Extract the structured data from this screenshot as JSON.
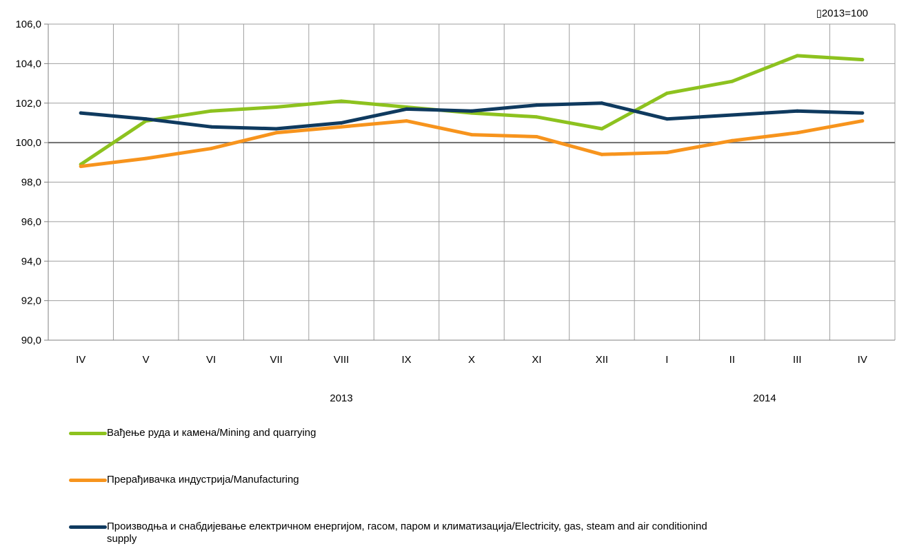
{
  "chart_data": {
    "type": "line",
    "unit_note": "2013=100",
    "categories": [
      "IV",
      "V",
      "VI",
      "VII",
      "VIII",
      "IX",
      "X",
      "XI",
      "XII",
      "I",
      "II",
      "III",
      "IV"
    ],
    "year_labels": [
      {
        "label": "2013",
        "from_index": 0,
        "to_index": 8
      },
      {
        "label": "2014",
        "from_index": 9,
        "to_index": 12
      }
    ],
    "ylim": [
      90,
      106
    ],
    "yticks": [
      "90,0",
      "92,0",
      "94,0",
      "96,0",
      "98,0",
      "100,0",
      "102,0",
      "104,0",
      "106,0"
    ],
    "reference_line": 100,
    "grid": true,
    "legend_position": "bottom",
    "series": [
      {
        "name": "Вађење руда и камена/Mining and quarrying",
        "color": "#8dc21f",
        "values": [
          98.9,
          101.1,
          101.6,
          101.8,
          102.1,
          101.8,
          101.5,
          101.3,
          100.7,
          102.5,
          103.1,
          104.4,
          104.2
        ]
      },
      {
        "name": "Прерађивачка индустрија/Manufacturing",
        "color": "#f7941d",
        "values": [
          98.8,
          99.2,
          99.7,
          100.5,
          100.8,
          101.1,
          100.4,
          100.3,
          99.4,
          99.5,
          100.1,
          100.5,
          101.1
        ]
      },
      {
        "name": "Производња и снабдијевање електричном енергијом, гасом, паром и климатизација/Electricity, gas, steam and air conditionind supply",
        "color": "#0f3a5f",
        "values": [
          101.5,
          101.2,
          100.8,
          100.7,
          101.0,
          101.7,
          101.6,
          101.9,
          102.0,
          101.2,
          101.4,
          101.6,
          101.5
        ]
      }
    ]
  }
}
